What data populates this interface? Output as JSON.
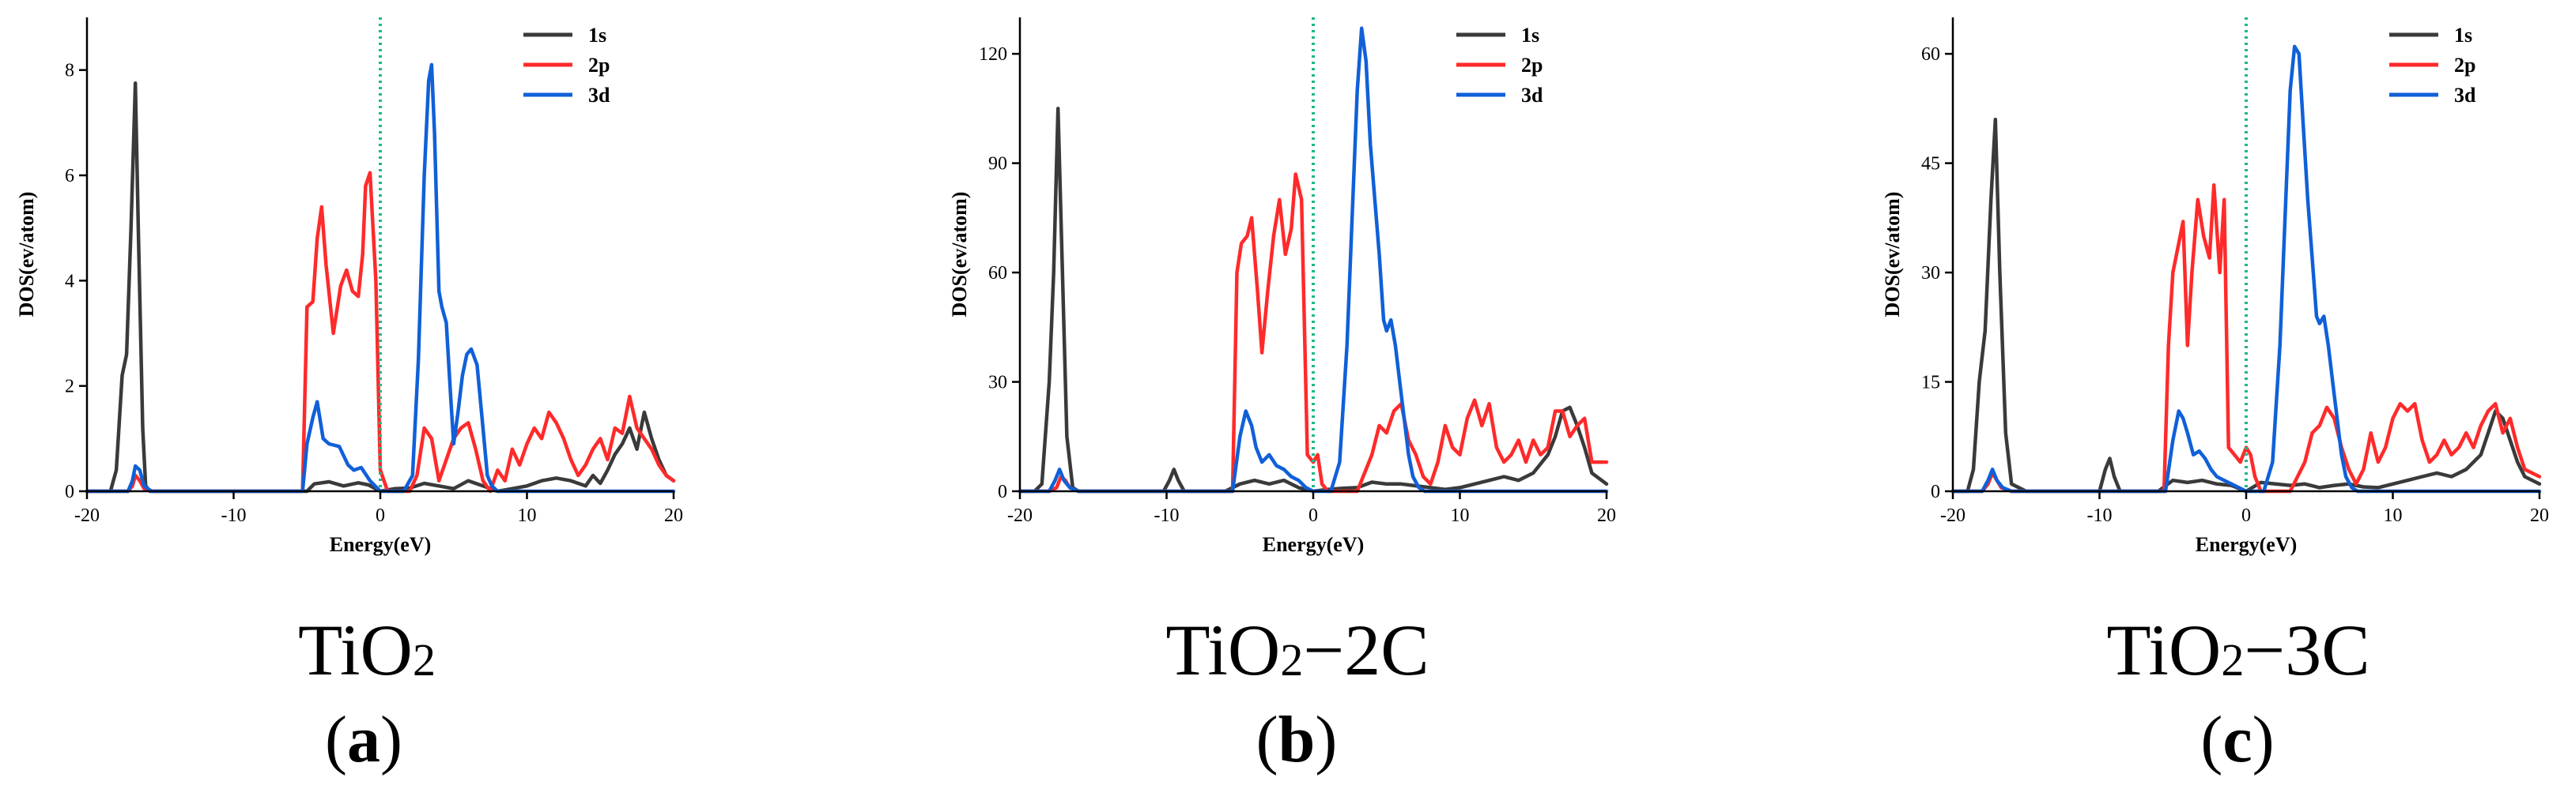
{
  "colors": {
    "s1": "#3a3a3a",
    "p2": "#ff2a2a",
    "d3": "#1060d8",
    "fermi": "#1fb88a",
    "axis": "#000000"
  },
  "chart_data": [
    {
      "type": "line",
      "label": "(a)",
      "caption": {
        "base": "TiO",
        "sub": "2",
        "suffix": ""
      },
      "letter": "a",
      "xlabel": "Energy(eV)",
      "ylabel": "DOS(ev/atom)",
      "xlim": [
        -20,
        20
      ],
      "ylim": [
        0,
        9
      ],
      "xticks": [
        -20,
        -10,
        0,
        10,
        20
      ],
      "yticks": [
        0,
        2,
        4,
        6,
        8
      ],
      "fermi_level": 0,
      "legend": [
        "1s",
        "2p",
        "3d"
      ],
      "series": [
        {
          "name": "1s",
          "x": [
            -20,
            -18.4,
            -18.0,
            -17.6,
            -17.3,
            -17.0,
            -16.7,
            -16.5,
            -16.2,
            -16.0,
            -15.7,
            -15.4,
            -5.0,
            -4.5,
            -3.5,
            -2.5,
            -1.5,
            -0.8,
            0,
            1,
            2,
            3,
            4,
            5,
            6,
            7,
            8,
            9,
            10,
            11,
            12,
            13,
            14,
            14.5,
            15,
            15.5,
            16,
            16.5,
            17,
            17.5,
            18,
            18.5,
            19,
            19.5,
            20
          ],
          "values": [
            0,
            0,
            0.4,
            2.2,
            2.6,
            5.0,
            7.75,
            5.0,
            1.2,
            0.1,
            0,
            0,
            0,
            0.14,
            0.18,
            0.1,
            0.16,
            0.12,
            0,
            0.05,
            0.06,
            0.15,
            0.1,
            0.05,
            0.2,
            0.1,
            0,
            0.05,
            0.1,
            0.2,
            0.25,
            0.2,
            0.1,
            0.3,
            0.15,
            0.4,
            0.7,
            0.9,
            1.2,
            0.8,
            1.5,
            1.0,
            0.6,
            0.3,
            0.2
          ]
        },
        {
          "name": "2p",
          "x": [
            -20,
            -17.2,
            -16.9,
            -16.7,
            -16.4,
            -16.1,
            -15.5,
            -5.3,
            -5.0,
            -4.6,
            -4.3,
            -4.0,
            -3.7,
            -3.2,
            -2.7,
            -2.3,
            -1.9,
            -1.5,
            -1.2,
            -1.0,
            -0.7,
            -0.3,
            0,
            0.5,
            1,
            2,
            2.5,
            3,
            3.5,
            4,
            4.5,
            5,
            5.5,
            6,
            6.5,
            7,
            7.5,
            8,
            8.5,
            9,
            9.5,
            10,
            10.5,
            11,
            11.5,
            12,
            12.5,
            13,
            13.5,
            14,
            14.5,
            15,
            15.5,
            16,
            16.5,
            17,
            17.5,
            18,
            18.5,
            19,
            19.5,
            20
          ],
          "values": [
            0,
            0,
            0.1,
            0.3,
            0.2,
            0.05,
            0,
            0,
            3.5,
            3.6,
            4.8,
            5.4,
            4.3,
            3.0,
            3.9,
            4.2,
            3.8,
            3.7,
            4.5,
            5.8,
            6.05,
            4.0,
            0.4,
            0,
            0,
            0,
            0.3,
            1.2,
            1.0,
            0.2,
            0.6,
            1.0,
            1.2,
            1.3,
            0.8,
            0.2,
            0,
            0.4,
            0.2,
            0.8,
            0.5,
            0.9,
            1.2,
            1.0,
            1.5,
            1.3,
            1.0,
            0.6,
            0.3,
            0.5,
            0.8,
            1.0,
            0.6,
            1.2,
            1.1,
            1.8,
            1.2,
            1.0,
            0.8,
            0.5,
            0.3,
            0.2
          ]
        },
        {
          "name": "3d",
          "x": [
            -20,
            -17.2,
            -16.9,
            -16.7,
            -16.4,
            -16.1,
            -15.6,
            -5.3,
            -5.0,
            -4.6,
            -4.3,
            -3.9,
            -3.5,
            -2.8,
            -2.2,
            -1.8,
            -1.3,
            -0.7,
            0,
            1.6,
            2.2,
            2.6,
            3.0,
            3.3,
            3.5,
            3.7,
            4.0,
            4.2,
            4.5,
            4.8,
            5.0,
            5.3,
            5.6,
            5.9,
            6.2,
            6.6,
            7.0,
            7.3,
            7.6,
            8.0,
            9,
            20
          ],
          "values": [
            0,
            0,
            0.2,
            0.48,
            0.4,
            0.1,
            0,
            0,
            0.9,
            1.4,
            1.7,
            1.0,
            0.9,
            0.85,
            0.5,
            0.4,
            0.45,
            0.2,
            0,
            0,
            0.3,
            2.5,
            6.0,
            7.8,
            8.1,
            6.8,
            3.8,
            3.5,
            3.2,
            1.8,
            0.9,
            1.5,
            2.2,
            2.6,
            2.7,
            2.4,
            1.2,
            0.3,
            0.1,
            0,
            0,
            0
          ]
        }
      ]
    },
    {
      "type": "line",
      "label": "(b)",
      "caption": {
        "base": "TiO",
        "sub": "2",
        "suffix": "−2C"
      },
      "letter": "b",
      "xlabel": "Energy(eV)",
      "ylabel": "DOS(ev/atom)",
      "xlim": [
        -20,
        20
      ],
      "ylim": [
        0,
        130
      ],
      "xticks": [
        -20,
        -10,
        0,
        10,
        20
      ],
      "yticks": [
        0,
        30,
        60,
        90,
        120
      ],
      "fermi_level": 0,
      "legend": [
        "1s",
        "2p",
        "3d"
      ],
      "series": [
        {
          "name": "1s",
          "x": [
            -20,
            -19.0,
            -18.5,
            -18.0,
            -17.7,
            -17.4,
            -17.1,
            -16.8,
            -16.4,
            -16.0,
            -15.0,
            -10.2,
            -9.8,
            -9.5,
            -9.2,
            -8.8,
            -6.0,
            -5.0,
            -4.0,
            -3.0,
            -2.0,
            -1.0,
            0,
            1,
            2,
            3,
            4,
            5,
            6,
            7,
            8,
            9,
            10,
            11,
            12,
            13,
            14,
            15,
            16,
            16.5,
            17,
            17.5,
            18,
            18.5,
            19,
            20
          ],
          "values": [
            0,
            0,
            2,
            30,
            60,
            105,
            60,
            15,
            1,
            0,
            0,
            0,
            3,
            6,
            3,
            0,
            0,
            2,
            3,
            2,
            3,
            1,
            0,
            0.5,
            0.8,
            1,
            2.5,
            2,
            2,
            1.5,
            1,
            0.5,
            1,
            2,
            3,
            4,
            3,
            5,
            10,
            15,
            22,
            23,
            18,
            12,
            5,
            2
          ]
        },
        {
          "name": "2p",
          "x": [
            -20,
            -18.0,
            -17.5,
            -17.2,
            -16.9,
            -16.6,
            -16.0,
            -5.5,
            -5.2,
            -4.9,
            -4.5,
            -4.2,
            -3.8,
            -3.5,
            -3.1,
            -2.7,
            -2.3,
            -1.9,
            -1.5,
            -1.2,
            -0.8,
            -0.4,
            0,
            0.3,
            0.6,
            1,
            2,
            3,
            4,
            4.5,
            5,
            5.5,
            6,
            6.5,
            7,
            7.5,
            8,
            8.5,
            9,
            9.5,
            10,
            10.5,
            11,
            11.5,
            12,
            12.5,
            13,
            13.5,
            14,
            14.5,
            15,
            15.5,
            16,
            16.5,
            17,
            17.5,
            18,
            18.5,
            19,
            20
          ],
          "values": [
            0,
            0,
            1,
            4,
            3,
            1,
            0,
            0,
            60,
            68,
            70,
            75,
            55,
            38,
            55,
            70,
            80,
            65,
            72,
            87,
            80,
            10,
            8,
            10,
            2,
            0,
            0,
            0,
            10,
            18,
            16,
            22,
            24,
            14,
            10,
            4,
            2,
            8,
            18,
            12,
            10,
            20,
            25,
            18,
            24,
            12,
            8,
            10,
            14,
            8,
            14,
            10,
            12,
            22,
            22,
            15,
            18,
            20,
            8,
            8
          ]
        },
        {
          "name": "3d",
          "x": [
            -20,
            -18.0,
            -17.6,
            -17.3,
            -17.0,
            -16.6,
            -16.0,
            -5.5,
            -5.0,
            -4.6,
            -4.2,
            -3.9,
            -3.5,
            -3.0,
            -2.5,
            -2.0,
            -1.5,
            -1.0,
            -0.5,
            0,
            1.2,
            1.8,
            2.3,
            2.7,
            3.0,
            3.3,
            3.6,
            3.9,
            4.2,
            4.5,
            4.8,
            5.0,
            5.3,
            5.6,
            5.9,
            6.2,
            6.5,
            6.8,
            7.2,
            7.6,
            8.0,
            9,
            20
          ],
          "values": [
            0,
            0,
            3,
            6,
            3,
            1,
            0,
            0,
            15,
            22,
            18,
            12,
            8,
            10,
            7,
            6,
            4,
            3,
            1,
            0,
            0,
            8,
            40,
            80,
            110,
            127,
            118,
            95,
            80,
            65,
            47,
            44,
            47,
            40,
            30,
            20,
            10,
            4,
            1,
            0,
            0,
            0,
            0
          ]
        }
      ]
    },
    {
      "type": "line",
      "label": "(c)",
      "caption": {
        "base": "TiO",
        "sub": "2",
        "suffix": "−3C"
      },
      "letter": "c",
      "xlabel": "Energy(eV)",
      "ylabel": "DOS(ev/atom)",
      "xlim": [
        -20,
        20
      ],
      "ylim": [
        0,
        65
      ],
      "xticks": [
        -20,
        -10,
        0,
        10,
        20
      ],
      "yticks": [
        0,
        15,
        30,
        45,
        60
      ],
      "fermi_level": 0,
      "legend": [
        "1s",
        "2p",
        "3d"
      ],
      "series": [
        {
          "name": "1s",
          "x": [
            -20,
            -19.0,
            -18.6,
            -18.2,
            -17.8,
            -17.4,
            -17.1,
            -16.8,
            -16.4,
            -16.0,
            -15.0,
            -10.0,
            -9.6,
            -9.3,
            -9.0,
            -8.6,
            -6.0,
            -5.0,
            -4.0,
            -3.0,
            -2.0,
            -1.0,
            0,
            1,
            2,
            3,
            4,
            5,
            6,
            7,
            8,
            9,
            10,
            11,
            12,
            13,
            14,
            15,
            16,
            16.5,
            17,
            17.5,
            18,
            18.5,
            19,
            20
          ],
          "values": [
            0,
            0,
            3,
            15,
            22,
            40,
            51,
            30,
            8,
            1,
            0,
            0,
            3,
            4.5,
            2,
            0,
            0,
            1.5,
            1.2,
            1.5,
            1,
            0.8,
            0,
            1.2,
            1,
            0.8,
            1,
            0.5,
            0.8,
            1,
            0.6,
            0.5,
            1,
            1.5,
            2,
            2.5,
            2,
            3,
            5,
            8,
            11,
            10,
            7,
            4,
            2,
            1
          ]
        },
        {
          "name": "2p",
          "x": [
            -20,
            -18.0,
            -17.6,
            -17.3,
            -17.0,
            -16.7,
            -16.0,
            -5.6,
            -5.3,
            -5.0,
            -4.6,
            -4.3,
            -4.0,
            -3.7,
            -3.3,
            -2.9,
            -2.5,
            -2.2,
            -1.8,
            -1.5,
            -1.2,
            -0.8,
            -0.4,
            0,
            0.3,
            0.6,
            1,
            2,
            3,
            4,
            4.5,
            5,
            5.5,
            6,
            6.5,
            7,
            7.5,
            8,
            8.5,
            9,
            9.5,
            10,
            10.5,
            11,
            11.5,
            12,
            12.5,
            13,
            13.5,
            14,
            14.5,
            15,
            15.5,
            16,
            16.5,
            17,
            17.5,
            18,
            18.5,
            19,
            20
          ],
          "values": [
            0,
            0,
            1,
            2.5,
            1.5,
            0.5,
            0,
            0,
            20,
            30,
            34,
            37,
            20,
            30,
            40,
            35,
            32,
            42,
            30,
            40,
            6,
            5,
            4,
            6,
            5,
            2,
            0,
            0,
            0,
            4,
            8,
            9,
            11.5,
            10,
            6,
            3,
            1,
            3,
            8,
            4,
            6,
            10,
            12,
            11,
            12,
            7,
            4,
            5,
            7,
            5,
            6,
            8,
            6,
            9,
            11,
            12,
            8,
            10,
            6,
            3,
            2
          ]
        },
        {
          "name": "3d",
          "x": [
            -20,
            -18.0,
            -17.6,
            -17.3,
            -17.0,
            -16.6,
            -16.0,
            -5.5,
            -5.0,
            -4.6,
            -4.3,
            -4.0,
            -3.6,
            -3.2,
            -2.8,
            -2.4,
            -2.0,
            -1.5,
            -1.0,
            -0.5,
            0,
            1.2,
            1.8,
            2.3,
            2.7,
            3.0,
            3.3,
            3.6,
            3.9,
            4.2,
            4.5,
            4.8,
            5.0,
            5.3,
            5.6,
            5.9,
            6.2,
            6.5,
            6.8,
            7.2,
            7.6,
            8.0,
            9,
            20
          ],
          "values": [
            0,
            0,
            1.5,
            3,
            1.5,
            0.5,
            0,
            0,
            7,
            11,
            10,
            8,
            5,
            5.5,
            4.5,
            3,
            2,
            1.5,
            1,
            0.5,
            0,
            0,
            4,
            20,
            40,
            55,
            61,
            60,
            50,
            40,
            32,
            24,
            23,
            24,
            20,
            15,
            10,
            5,
            2,
            0.5,
            0,
            0,
            0,
            0
          ]
        }
      ]
    }
  ]
}
